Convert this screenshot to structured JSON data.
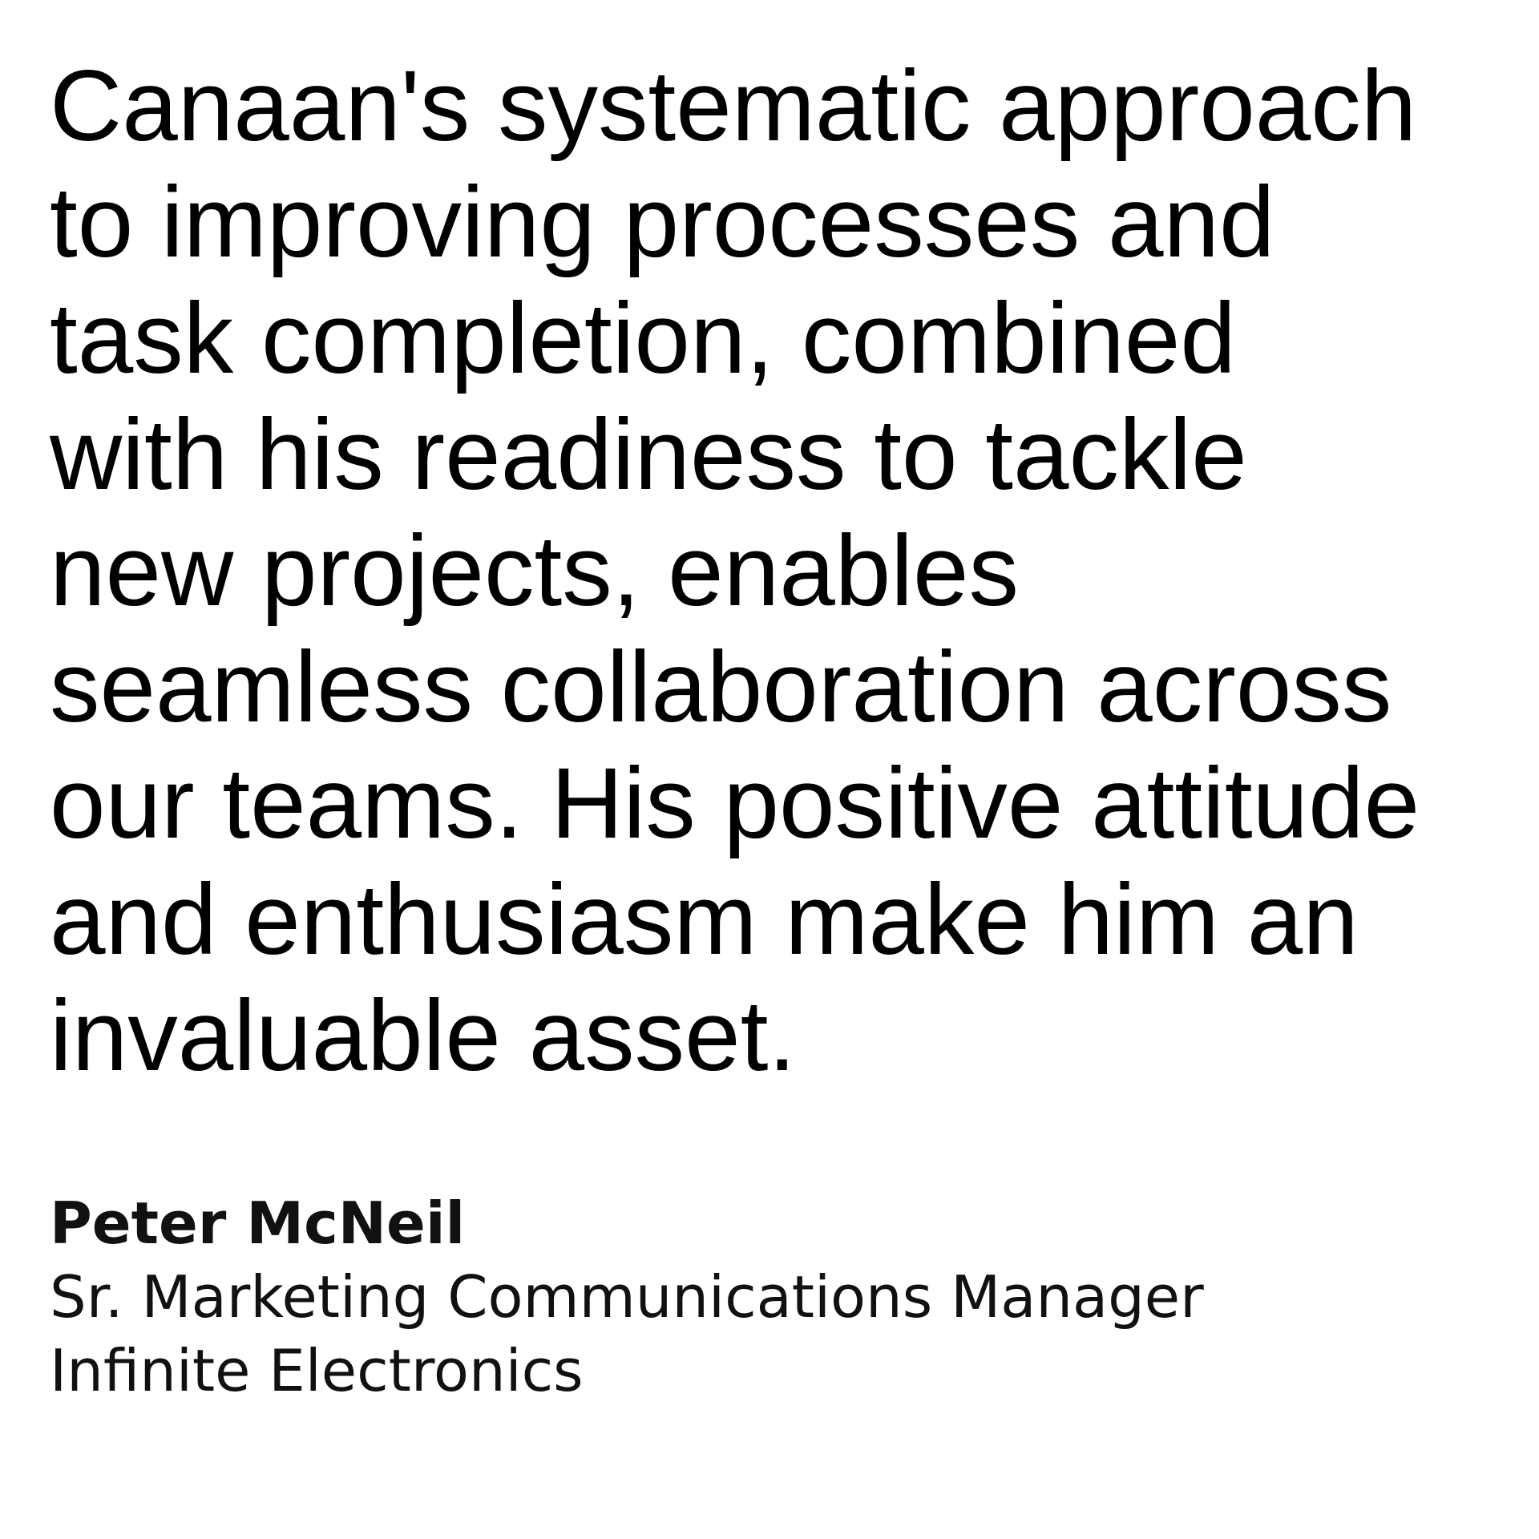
{
  "testimonial": {
    "quote_lines": [
      "Canaan's systematic approach",
      "to improving processes and",
      "task completion, combined",
      "with his readiness to tackle",
      "new projects, enables",
      "seamless collaboration across",
      "our teams. His positive attitude",
      "and enthusiasm make him an",
      "invaluable asset."
    ]
  },
  "attribution": {
    "name": "Peter McNeil",
    "title": "Sr. Marketing Communications Manager",
    "company": "Infinite Electronics"
  }
}
